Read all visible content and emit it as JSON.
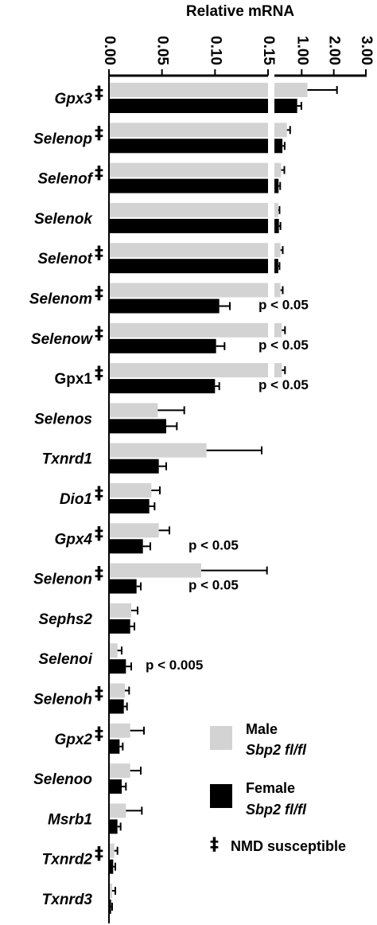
{
  "chart_data": {
    "type": "bar",
    "orientation": "horizontal",
    "title": "Relative  mRNA",
    "x_axis": {
      "scale": "broken",
      "segment1": {
        "range": [
          0,
          0.15
        ],
        "ticks": [
          "0.00",
          "0.05",
          "0.10",
          "0.15"
        ]
      },
      "segment2": {
        "range": [
          0.15,
          3.0
        ],
        "ticks": [
          "1.00",
          "2.00",
          "3.00"
        ]
      },
      "position": "top"
    },
    "categories": [
      {
        "label": "Gpx3",
        "italic": true,
        "nmd": true
      },
      {
        "label": "Selenop",
        "italic": true,
        "nmd": true
      },
      {
        "label": "Selenof",
        "italic": true,
        "nmd": true
      },
      {
        "label": "Selenok",
        "italic": true,
        "nmd": false
      },
      {
        "label": "Selenot",
        "italic": true,
        "nmd": true
      },
      {
        "label": "Selenom",
        "italic": true,
        "nmd": true
      },
      {
        "label": "Selenow",
        "italic": true,
        "nmd": true
      },
      {
        "label": "Gpx1",
        "italic": false,
        "nmd": true
      },
      {
        "label": "Selenos",
        "italic": true,
        "nmd": false
      },
      {
        "label": "Txnrd1",
        "italic": true,
        "nmd": false
      },
      {
        "label": "Dio1",
        "italic": true,
        "nmd": true
      },
      {
        "label": "Gpx4",
        "italic": true,
        "nmd": true
      },
      {
        "label": "Selenon",
        "italic": true,
        "nmd": true
      },
      {
        "label": "Sephs2",
        "italic": true,
        "nmd": false
      },
      {
        "label": "Selenoi",
        "italic": true,
        "nmd": false
      },
      {
        "label": "Selenoh",
        "italic": true,
        "nmd": true
      },
      {
        "label": "Gpx2",
        "italic": true,
        "nmd": true
      },
      {
        "label": "Selenoo",
        "italic": true,
        "nmd": false
      },
      {
        "label": "Msrb1",
        "italic": true,
        "nmd": false
      },
      {
        "label": "Txnrd2",
        "italic": true,
        "nmd": true
      },
      {
        "label": "Txnrd3",
        "italic": true,
        "nmd": false
      }
    ],
    "series": [
      {
        "name": "Male Sbp2 fl/fl",
        "color": "#d3d3d3",
        "values": [
          1.18,
          0.54,
          0.36,
          0.27,
          0.34,
          0.34,
          0.38,
          0.38,
          0.046,
          0.092,
          0.04,
          0.047,
          0.087,
          0.021,
          0.008,
          0.015,
          0.02,
          0.02,
          0.016,
          0.005,
          0.003
        ],
        "errors": [
          0.92,
          0.1,
          0.1,
          0.04,
          0.07,
          0.07,
          0.1,
          0.1,
          0.025,
          0.052,
          0.008,
          0.01,
          0.062,
          0.006,
          0.004,
          0.004,
          0.013,
          0.01,
          0.015,
          0.003,
          0.003
        ]
      },
      {
        "name": "Female Sbp2 fl/fl",
        "color": "#000000",
        "values": [
          0.86,
          0.4,
          0.28,
          0.29,
          0.27,
          0.104,
          0.101,
          0.1,
          0.054,
          0.047,
          0.038,
          0.032,
          0.026,
          0.02,
          0.016,
          0.014,
          0.01,
          0.012,
          0.008,
          0.004,
          0.002
        ],
        "errors": [
          0.13,
          0.07,
          0.05,
          0.05,
          0.04,
          0.01,
          0.008,
          0.004,
          0.01,
          0.007,
          0.005,
          0.007,
          0.004,
          0.004,
          0.005,
          0.003,
          0.003,
          0.004,
          0.003,
          0.002,
          0.001
        ]
      }
    ],
    "annotations": [
      {
        "category": "Selenom",
        "text": "p < 0.05"
      },
      {
        "category": "Selenow",
        "text": "p < 0.05"
      },
      {
        "category": "Gpx1",
        "text": "p < 0.05"
      },
      {
        "category": "Gpx4",
        "text": "p < 0.05"
      },
      {
        "category": "Selenon",
        "text": "p < 0.05"
      },
      {
        "category": "Selenoi",
        "text": "p < 0.005"
      }
    ],
    "nmd_symbol": "‡",
    "legend": {
      "position": "bottom-right",
      "items": [
        {
          "line1": "Male",
          "line2": "Sbp2 fl/fl",
          "color": "#d3d3d3"
        },
        {
          "line1": "Female",
          "line2": "Sbp2 fl/fl",
          "color": "#000000"
        }
      ],
      "nmd_label": "NMD susceptible"
    }
  }
}
